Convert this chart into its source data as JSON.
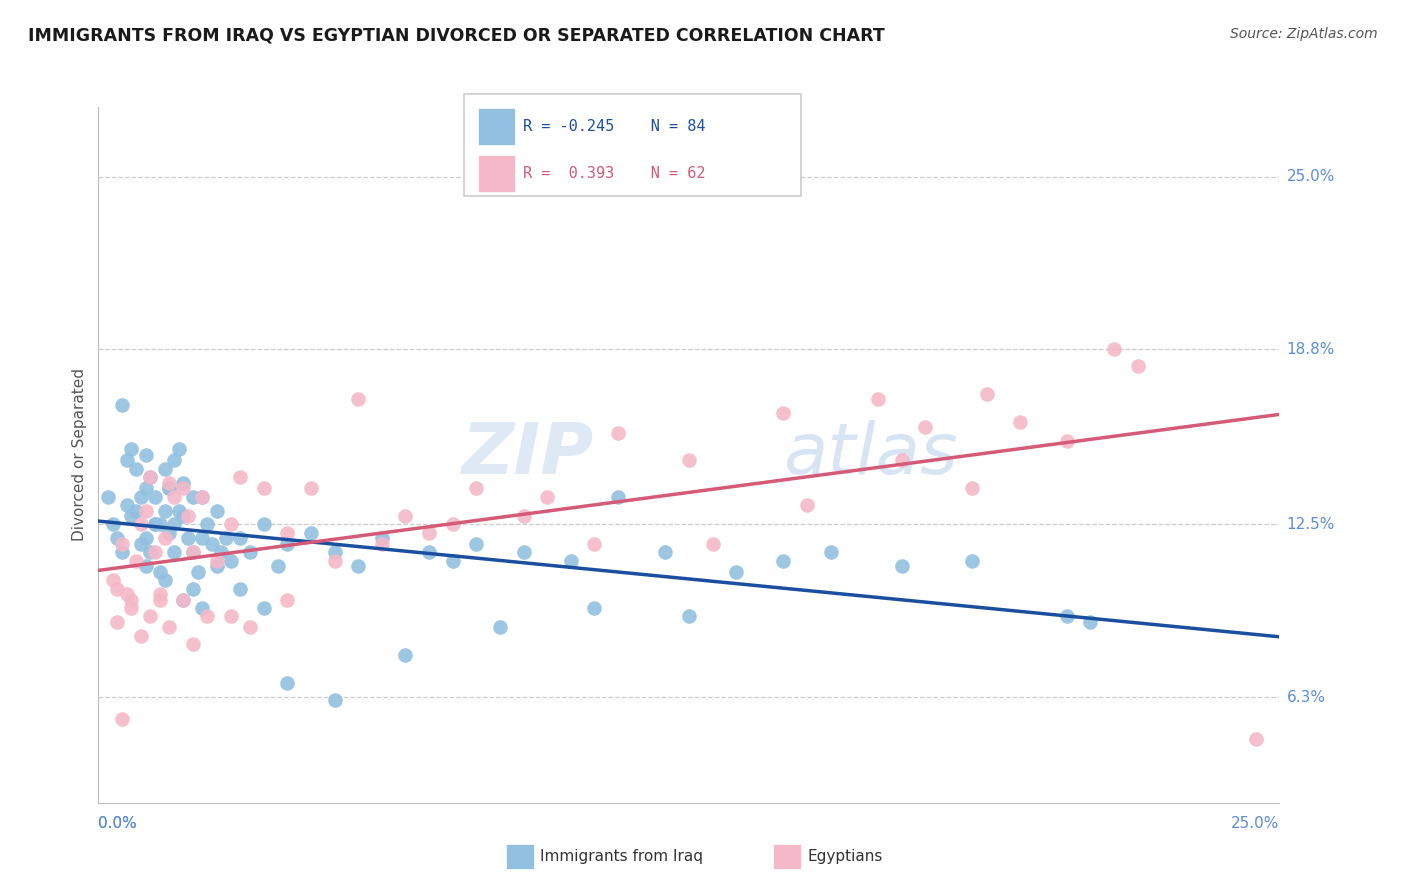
{
  "title": "IMMIGRANTS FROM IRAQ VS EGYPTIAN DIVORCED OR SEPARATED CORRELATION CHART",
  "source": "Source: ZipAtlas.com",
  "ylabel": "Divorced or Separated",
  "ylabel_ticks": [
    "6.3%",
    "12.5%",
    "18.8%",
    "25.0%"
  ],
  "ylabel_tick_vals": [
    6.3,
    12.5,
    18.8,
    25.0
  ],
  "xmin": 0.0,
  "xmax": 25.0,
  "ymin": 2.5,
  "ymax": 27.5,
  "legend_blue_R": "R = -0.245",
  "legend_blue_N": "N = 84",
  "legend_pink_R": "R =  0.393",
  "legend_pink_N": "N = 62",
  "blue_color": "#92c0e0",
  "pink_color": "#f5b8c8",
  "blue_line_color": "#1a4fa0",
  "pink_line_color": "#d45a78",
  "watermark_zip": "ZIP",
  "watermark_atlas": "atlas",
  "blue_x": [
    0.2,
    0.3,
    0.4,
    0.5,
    0.5,
    0.6,
    0.6,
    0.7,
    0.7,
    0.8,
    0.8,
    0.9,
    0.9,
    1.0,
    1.0,
    1.0,
    1.1,
    1.1,
    1.2,
    1.2,
    1.3,
    1.3,
    1.4,
    1.4,
    1.5,
    1.5,
    1.6,
    1.6,
    1.7,
    1.7,
    1.8,
    1.8,
    1.9,
    2.0,
    2.0,
    2.1,
    2.2,
    2.2,
    2.3,
    2.4,
    2.5,
    2.6,
    2.7,
    2.8,
    3.0,
    3.2,
    3.5,
    3.8,
    4.0,
    4.5,
    5.0,
    5.5,
    6.0,
    7.0,
    7.5,
    8.0,
    9.0,
    10.0,
    11.0,
    12.0,
    13.5,
    14.5,
    15.5,
    17.0,
    18.5,
    20.5,
    1.0,
    1.2,
    1.4,
    1.5,
    1.6,
    1.8,
    2.0,
    2.2,
    2.5,
    3.0,
    3.5,
    4.0,
    5.0,
    6.5,
    8.5,
    10.5,
    12.5,
    21.0
  ],
  "blue_y": [
    13.5,
    12.5,
    12.0,
    16.8,
    11.5,
    14.8,
    13.2,
    15.2,
    12.8,
    13.0,
    14.5,
    11.8,
    13.5,
    12.0,
    13.8,
    15.0,
    11.5,
    14.2,
    12.5,
    13.5,
    10.8,
    12.5,
    13.0,
    14.5,
    12.2,
    13.8,
    12.5,
    14.8,
    13.0,
    15.2,
    12.8,
    14.0,
    12.0,
    11.5,
    13.5,
    10.8,
    12.0,
    13.5,
    12.5,
    11.8,
    13.0,
    11.5,
    12.0,
    11.2,
    12.0,
    11.5,
    12.5,
    11.0,
    11.8,
    12.2,
    11.5,
    11.0,
    12.0,
    11.5,
    11.2,
    11.8,
    11.5,
    11.2,
    13.5,
    11.5,
    10.8,
    11.2,
    11.5,
    11.0,
    11.2,
    9.2,
    11.0,
    12.5,
    10.5,
    13.8,
    11.5,
    9.8,
    10.2,
    9.5,
    11.0,
    10.2,
    9.5,
    6.8,
    6.2,
    7.8,
    8.8,
    9.5,
    9.2,
    9.0
  ],
  "pink_x": [
    0.3,
    0.4,
    0.5,
    0.6,
    0.7,
    0.8,
    0.9,
    1.0,
    1.1,
    1.2,
    1.3,
    1.4,
    1.5,
    1.6,
    1.8,
    1.9,
    2.0,
    2.2,
    2.5,
    2.8,
    3.0,
    3.5,
    4.0,
    4.5,
    5.5,
    6.5,
    7.5,
    9.5,
    11.0,
    12.5,
    14.5,
    16.5,
    17.5,
    18.5,
    0.4,
    0.5,
    0.7,
    0.9,
    1.1,
    1.3,
    1.5,
    1.8,
    2.0,
    2.3,
    2.8,
    3.2,
    4.0,
    5.0,
    6.0,
    7.0,
    8.0,
    9.0,
    10.5,
    13.0,
    15.0,
    17.0,
    19.5,
    21.5,
    22.0,
    24.5,
    18.8,
    20.5
  ],
  "pink_y": [
    10.5,
    10.2,
    11.8,
    10.0,
    9.5,
    11.2,
    12.5,
    13.0,
    14.2,
    11.5,
    10.0,
    12.0,
    14.0,
    13.5,
    13.8,
    12.8,
    11.5,
    13.5,
    11.2,
    12.5,
    14.2,
    13.8,
    12.2,
    13.8,
    17.0,
    12.8,
    12.5,
    13.5,
    15.8,
    14.8,
    16.5,
    17.0,
    16.0,
    13.8,
    9.0,
    5.5,
    9.8,
    8.5,
    9.2,
    9.8,
    8.8,
    9.8,
    8.2,
    9.2,
    9.2,
    8.8,
    9.8,
    11.2,
    11.8,
    12.2,
    13.8,
    12.8,
    11.8,
    11.8,
    13.2,
    14.8,
    16.2,
    18.8,
    18.2,
    4.8,
    17.2,
    15.5
  ]
}
